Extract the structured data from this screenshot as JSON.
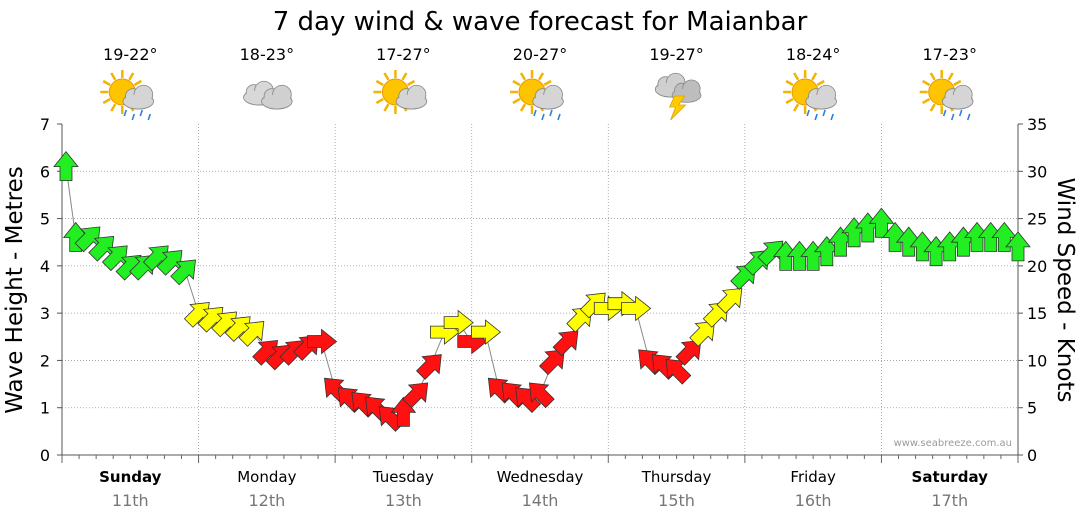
{
  "chart_data": {
    "type": "line",
    "title": "7 day wind & wave forecast for Maianbar",
    "ylabel": "Wave Height - Metres",
    "y2label": "Wind Speed - Knots",
    "ylim": [
      0,
      7
    ],
    "y2lim": [
      0,
      35
    ],
    "yticks": [
      0,
      1,
      2,
      3,
      4,
      5,
      6,
      7
    ],
    "y2ticks": [
      0,
      5,
      10,
      15,
      20,
      25,
      30,
      35
    ],
    "watermark": "www.seabreeze.com.au",
    "days": [
      {
        "name": "Sunday",
        "date": "11th",
        "temp": "19-22°",
        "weather": "sun-cloud-rain",
        "bold": true
      },
      {
        "name": "Monday",
        "date": "12th",
        "temp": "18-23°",
        "weather": "cloud",
        "bold": false
      },
      {
        "name": "Tuesday",
        "date": "13th",
        "temp": "17-27°",
        "weather": "sun-cloud",
        "bold": false
      },
      {
        "name": "Wednesday",
        "date": "14th",
        "temp": "20-27°",
        "weather": "sun-cloud-rain",
        "bold": false
      },
      {
        "name": "Thursday",
        "date": "15th",
        "temp": "19-27°",
        "weather": "storm",
        "bold": false
      },
      {
        "name": "Friday",
        "date": "16th",
        "temp": "18-24°",
        "weather": "sun-cloud-rain",
        "bold": false
      },
      {
        "name": "Saturday",
        "date": "17th",
        "temp": "17-23°",
        "weather": "sun-cloud-rain",
        "bold": true
      }
    ],
    "series": [
      {
        "name": "Wind speed (knots)",
        "x_unit": "day index (0 = Sunday 00:00)",
        "points": [
          [
            0.0,
            30.5,
            "N"
          ],
          [
            0.1,
            23.0,
            "N"
          ],
          [
            0.2,
            23.0,
            "NE"
          ],
          [
            0.3,
            22.0,
            "NE"
          ],
          [
            0.4,
            21.0,
            "NE"
          ],
          [
            0.5,
            20.0,
            "NE"
          ],
          [
            0.6,
            20.0,
            "NE"
          ],
          [
            0.7,
            21.0,
            "NE"
          ],
          [
            0.8,
            20.5,
            "NE"
          ],
          [
            0.9,
            19.5,
            "NE"
          ],
          [
            1.0,
            15.0,
            "NE"
          ],
          [
            1.1,
            14.5,
            "NE"
          ],
          [
            1.2,
            14.0,
            "NE"
          ],
          [
            1.3,
            13.5,
            "NE"
          ],
          [
            1.4,
            13.0,
            "NE"
          ],
          [
            1.5,
            11.0,
            "NE"
          ],
          [
            1.6,
            10.5,
            "NE"
          ],
          [
            1.7,
            11.0,
            "NE"
          ],
          [
            1.8,
            11.5,
            "NE"
          ],
          [
            1.9,
            12.0,
            "E"
          ],
          [
            2.0,
            7.0,
            "NW"
          ],
          [
            2.1,
            6.0,
            "NW"
          ],
          [
            2.2,
            5.5,
            "NW"
          ],
          [
            2.3,
            5.0,
            "NW"
          ],
          [
            2.4,
            4.0,
            "NW"
          ],
          [
            2.5,
            4.5,
            "N"
          ],
          [
            2.6,
            6.5,
            "NE"
          ],
          [
            2.7,
            9.5,
            "NE"
          ],
          [
            2.8,
            13.0,
            "E"
          ],
          [
            2.9,
            14.0,
            "E"
          ],
          [
            3.0,
            12.0,
            "E"
          ],
          [
            3.1,
            13.0,
            "E"
          ],
          [
            3.2,
            7.0,
            "NW"
          ],
          [
            3.3,
            6.5,
            "NW"
          ],
          [
            3.4,
            6.0,
            "NW"
          ],
          [
            3.5,
            6.5,
            "NW"
          ],
          [
            3.6,
            10.0,
            "NE"
          ],
          [
            3.7,
            12.0,
            "NE"
          ],
          [
            3.8,
            14.5,
            "NE"
          ],
          [
            3.9,
            16.0,
            "NE"
          ],
          [
            4.0,
            15.5,
            "E"
          ],
          [
            4.1,
            16.0,
            "E"
          ],
          [
            4.2,
            15.5,
            "E"
          ],
          [
            4.3,
            10.0,
            "NW"
          ],
          [
            4.4,
            9.5,
            "NW"
          ],
          [
            4.5,
            9.0,
            "NW"
          ],
          [
            4.6,
            11.0,
            "NE"
          ],
          [
            4.7,
            13.0,
            "NE"
          ],
          [
            4.8,
            15.0,
            "NE"
          ],
          [
            4.9,
            16.5,
            "NE"
          ],
          [
            5.0,
            19.0,
            "NE"
          ],
          [
            5.1,
            20.5,
            "NE"
          ],
          [
            5.2,
            21.5,
            "NE"
          ],
          [
            5.3,
            21.0,
            "N"
          ],
          [
            5.4,
            21.0,
            "N"
          ],
          [
            5.5,
            21.0,
            "N"
          ],
          [
            5.6,
            21.5,
            "N"
          ],
          [
            5.7,
            22.5,
            "N"
          ],
          [
            5.8,
            23.5,
            "N"
          ],
          [
            5.9,
            24.0,
            "N"
          ],
          [
            6.0,
            24.5,
            "N"
          ],
          [
            6.1,
            23.0,
            "N"
          ],
          [
            6.2,
            22.5,
            "N"
          ],
          [
            6.3,
            22.0,
            "N"
          ],
          [
            6.4,
            21.5,
            "N"
          ],
          [
            6.5,
            22.0,
            "N"
          ],
          [
            6.6,
            22.5,
            "N"
          ],
          [
            6.7,
            23.0,
            "N"
          ],
          [
            6.8,
            23.0,
            "N"
          ],
          [
            6.9,
            23.0,
            "N"
          ],
          [
            7.0,
            22.0,
            "N"
          ]
        ]
      }
    ]
  }
}
